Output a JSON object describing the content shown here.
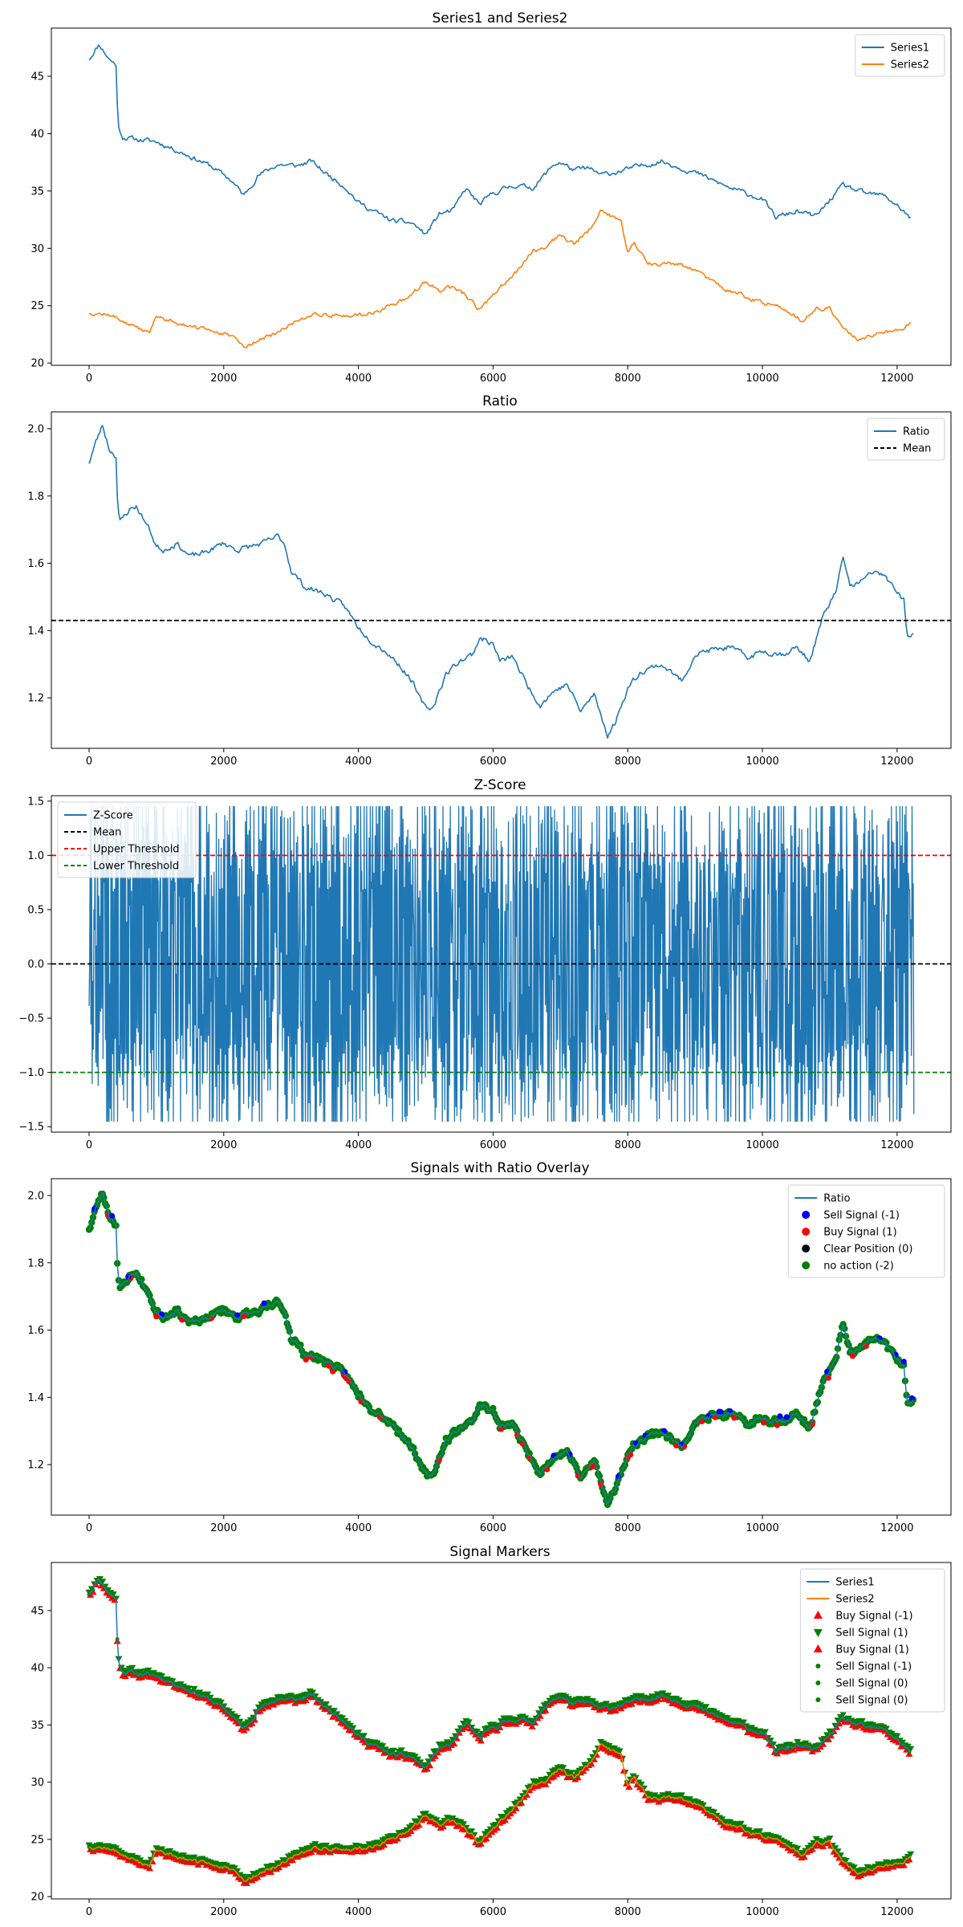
{
  "chart_data": [
    {
      "type": "line",
      "title": "Series1 and Series2",
      "xlim": [
        -560,
        12800
      ],
      "ylim": [
        19.8,
        49.2
      ],
      "xticks": [
        0,
        2000,
        4000,
        6000,
        8000,
        10000,
        12000
      ],
      "yticks": [
        20,
        25,
        30,
        35,
        40,
        45
      ],
      "legend": "top-right",
      "series": [
        {
          "name": "Series1",
          "color": "#1f77b4",
          "x": [
            0,
            150,
            300,
            400,
            420,
            440,
            500,
            700,
            1000,
            1400,
            1800,
            2100,
            2300,
            2500,
            2800,
            3100,
            3300,
            3500,
            3800,
            4000,
            4300,
            4500,
            4800,
            5000,
            5200,
            5400,
            5600,
            5800,
            6000,
            6300,
            6600,
            6900,
            7000,
            7200,
            7400,
            7600,
            7800,
            8000,
            8200,
            8500,
            9000,
            9500,
            10000,
            10200,
            10500,
            10800,
            11000,
            11200,
            11500,
            11800,
            12000,
            12200
          ],
          "values": [
            46.5,
            47.8,
            46.5,
            46.0,
            42.5,
            40.5,
            39.7,
            39.5,
            39.3,
            38.3,
            37.2,
            36.0,
            34.6,
            36.3,
            37.3,
            37.2,
            37.6,
            36.6,
            35.4,
            34.0,
            33.0,
            32.4,
            32.2,
            31.2,
            33.0,
            33.3,
            35.2,
            33.8,
            34.8,
            35.5,
            35.3,
            37.3,
            37.5,
            36.8,
            37.0,
            36.4,
            36.6,
            36.9,
            37.2,
            37.6,
            36.6,
            35.3,
            34.3,
            32.7,
            33.2,
            32.8,
            34.2,
            35.5,
            34.8,
            34.6,
            33.8,
            32.6
          ]
        },
        {
          "name": "Series2",
          "color": "#ff7f0e",
          "x": [
            0,
            300,
            500,
            700,
            900,
            1000,
            1300,
            1600,
            1900,
            2200,
            2300,
            2500,
            2800,
            3000,
            3300,
            3600,
            4000,
            4300,
            4700,
            5000,
            5200,
            5400,
            5600,
            5800,
            6000,
            6200,
            6400,
            6600,
            6800,
            7000,
            7200,
            7400,
            7600,
            7700,
            7900,
            8000,
            8100,
            8300,
            8600,
            8900,
            9200,
            9500,
            10000,
            10300,
            10600,
            10800,
            11000,
            11200,
            11400,
            11700,
            12000,
            12200
          ],
          "values": [
            24.4,
            24.2,
            23.7,
            23.0,
            22.8,
            24.0,
            23.6,
            23.0,
            22.8,
            22.0,
            21.3,
            22.0,
            22.6,
            23.4,
            24.3,
            24.2,
            24.1,
            24.6,
            25.5,
            27.1,
            26.3,
            26.6,
            25.9,
            24.6,
            26.0,
            27.2,
            28.3,
            29.8,
            30.2,
            31.2,
            30.4,
            31.3,
            33.5,
            32.9,
            32.4,
            29.7,
            30.5,
            28.7,
            28.7,
            28.4,
            27.3,
            26.3,
            25.3,
            24.8,
            23.7,
            24.8,
            24.8,
            23.0,
            22.1,
            22.5,
            22.9,
            23.4
          ]
        }
      ]
    },
    {
      "type": "line",
      "title": "Ratio",
      "xlim": [
        -560,
        12800
      ],
      "ylim": [
        1.05,
        2.05
      ],
      "xticks": [
        0,
        2000,
        4000,
        6000,
        8000,
        10000,
        12000
      ],
      "yticks": [
        1.2,
        1.4,
        1.6,
        1.8,
        2.0
      ],
      "legend": "top-right",
      "series": [
        {
          "name": "Ratio",
          "color": "#1f77b4",
          "x": [
            0,
            100,
            200,
            300,
            400,
            420,
            450,
            600,
            700,
            900,
            1000,
            1100,
            1300,
            1500,
            1700,
            2000,
            2200,
            2400,
            2600,
            2800,
            2900,
            3000,
            3200,
            3500,
            3800,
            4000,
            4200,
            4400,
            4600,
            4800,
            4900,
            5000,
            5100,
            5300,
            5500,
            5700,
            5800,
            6000,
            6100,
            6300,
            6500,
            6700,
            6900,
            7100,
            7300,
            7500,
            7700,
            7800,
            8000,
            8200,
            8500,
            8800,
            9000,
            9200,
            9500,
            9800,
            10000,
            10300,
            10500,
            10700,
            10900,
            11100,
            11200,
            11300,
            11500,
            11700,
            11900,
            12100,
            12150,
            12250
          ],
          "values": [
            1.9,
            1.96,
            2.01,
            1.94,
            1.92,
            1.8,
            1.72,
            1.76,
            1.77,
            1.7,
            1.65,
            1.64,
            1.66,
            1.62,
            1.63,
            1.66,
            1.64,
            1.65,
            1.66,
            1.68,
            1.66,
            1.58,
            1.53,
            1.51,
            1.47,
            1.41,
            1.37,
            1.34,
            1.3,
            1.25,
            1.2,
            1.17,
            1.17,
            1.27,
            1.31,
            1.33,
            1.38,
            1.36,
            1.31,
            1.32,
            1.24,
            1.18,
            1.22,
            1.24,
            1.16,
            1.21,
            1.09,
            1.12,
            1.23,
            1.28,
            1.3,
            1.25,
            1.33,
            1.34,
            1.35,
            1.32,
            1.34,
            1.33,
            1.35,
            1.31,
            1.44,
            1.52,
            1.62,
            1.53,
            1.55,
            1.58,
            1.54,
            1.49,
            1.37,
            1.4
          ]
        }
      ],
      "mean_line": {
        "name": "Mean",
        "value": 1.43,
        "color": "#000000"
      }
    },
    {
      "type": "line",
      "title": "Z-Score",
      "xlim": [
        -560,
        12800
      ],
      "ylim": [
        -1.55,
        1.55
      ],
      "xticks": [
        0,
        2000,
        4000,
        6000,
        8000,
        10000,
        12000
      ],
      "yticks": [
        -1.5,
        -1.0,
        -0.5,
        0.0,
        0.5,
        1.0,
        1.5
      ],
      "ytick_labels": [
        "−1.5",
        "−1.0",
        "−0.5",
        "0.0",
        "0.5",
        "1.0",
        "1.5"
      ],
      "legend": "top-left",
      "series": [
        {
          "name": "Z-Score",
          "color": "#1f77b4",
          "x_range": [
            0,
            12250
          ],
          "oscillation_range": [
            -1.45,
            1.45
          ]
        }
      ],
      "hlines": [
        {
          "name": "Mean",
          "value": 0.0,
          "color": "#000000"
        },
        {
          "name": "Upper Threshold",
          "value": 1.0,
          "color": "#ff0000"
        },
        {
          "name": "Lower Threshold",
          "value": -1.0,
          "color": "#008000"
        }
      ]
    },
    {
      "type": "scatter",
      "title": "Signals with Ratio Overlay",
      "xlim": [
        -560,
        12800
      ],
      "ylim": [
        1.05,
        2.05
      ],
      "xticks": [
        0,
        2000,
        4000,
        6000,
        8000,
        10000,
        12000
      ],
      "yticks": [
        1.2,
        1.4,
        1.6,
        1.8,
        2.0
      ],
      "legend": "top-right",
      "legend_entries": [
        {
          "name": "Ratio",
          "kind": "line",
          "color": "#1f77b4"
        },
        {
          "name": "Sell Signal (-1)",
          "kind": "dot",
          "color": "#0000ff"
        },
        {
          "name": "Buy Signal (1)",
          "kind": "dot",
          "color": "#ff0000"
        },
        {
          "name": "Clear Position (0)",
          "kind": "dot",
          "color": "#000000"
        },
        {
          "name": "no action (-2)",
          "kind": "dot",
          "color": "#008000"
        }
      ]
    },
    {
      "type": "scatter",
      "title": "Signal Markers",
      "xlim": [
        -560,
        12800
      ],
      "ylim": [
        19.8,
        49.2
      ],
      "xticks": [
        0,
        2000,
        4000,
        6000,
        8000,
        10000,
        12000
      ],
      "yticks": [
        20,
        25,
        30,
        35,
        40,
        45
      ],
      "legend": "top-right",
      "legend_entries": [
        {
          "name": "Series1",
          "kind": "line",
          "color": "#1f77b4"
        },
        {
          "name": "Series2",
          "kind": "line",
          "color": "#ff7f0e"
        },
        {
          "name": "Buy Signal (-1)",
          "kind": "tri-up",
          "color": "#ff0000"
        },
        {
          "name": "Sell Signal (1)",
          "kind": "tri-down",
          "color": "#008000"
        },
        {
          "name": "Buy Signal (1)",
          "kind": "tri-up",
          "color": "#ff0000"
        },
        {
          "name": "Sell Signal (-1)",
          "kind": "small-dot",
          "color": "#008000"
        },
        {
          "name": "Sell Signal (0)",
          "kind": "small-dot",
          "color": "#008000"
        },
        {
          "name": "Sell Signal (0)",
          "kind": "small-dot",
          "color": "#008000"
        }
      ]
    }
  ]
}
